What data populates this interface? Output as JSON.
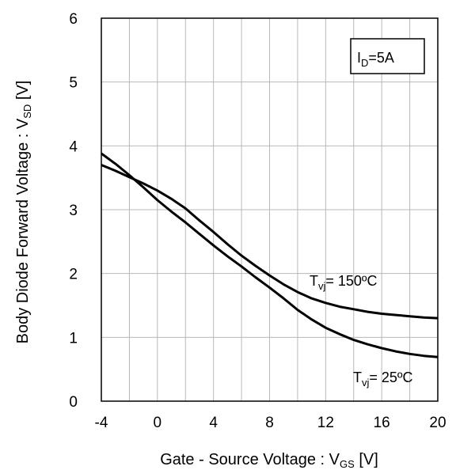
{
  "chart_data": {
    "type": "line",
    "title": "",
    "xlabel": "Gate - Source Voltage : V",
    "xlabel_sub": "GS",
    "xlabel_unit": " [V]",
    "ylabel": "Body Diode  Forward Voltage : V",
    "ylabel_sub": "SD",
    "ylabel_unit": " [V]",
    "xlim": [
      -4,
      20
    ],
    "ylim": [
      0,
      6
    ],
    "xticks": [
      -4,
      0,
      4,
      8,
      12,
      16,
      20
    ],
    "yticks": [
      0,
      1,
      2,
      3,
      4,
      5,
      6
    ],
    "x_minor_step": 2,
    "y_minor_step": 1,
    "grid": true,
    "condition_box": {
      "main": "I",
      "sub": "D",
      "rest": "=5A"
    },
    "series": [
      {
        "label_main": "T",
        "label_sub": "vj",
        "label_rest": "= 150ºC",
        "x": [
          -4,
          -3,
          -2,
          -1,
          0,
          1,
          2,
          3,
          4,
          5,
          6,
          7,
          8,
          9,
          10,
          11,
          12,
          13,
          14,
          15,
          16,
          17,
          18,
          19,
          20
        ],
        "y": [
          3.7,
          3.61,
          3.51,
          3.41,
          3.3,
          3.17,
          3.02,
          2.83,
          2.65,
          2.46,
          2.28,
          2.12,
          1.97,
          1.83,
          1.71,
          1.61,
          1.54,
          1.48,
          1.44,
          1.4,
          1.37,
          1.35,
          1.33,
          1.31,
          1.3
        ]
      },
      {
        "label_main": "T",
        "label_sub": "vj",
        "label_rest": "= 25ºC",
        "x": [
          -4,
          -3,
          -2,
          -1,
          0,
          1,
          2,
          3,
          4,
          5,
          6,
          7,
          8,
          9,
          10,
          11,
          12,
          13,
          14,
          15,
          16,
          17,
          18,
          19,
          20
        ],
        "y": [
          3.88,
          3.72,
          3.54,
          3.35,
          3.15,
          2.97,
          2.8,
          2.62,
          2.44,
          2.27,
          2.11,
          1.94,
          1.78,
          1.61,
          1.43,
          1.28,
          1.15,
          1.05,
          0.96,
          0.89,
          0.83,
          0.78,
          0.74,
          0.71,
          0.69
        ]
      }
    ]
  }
}
